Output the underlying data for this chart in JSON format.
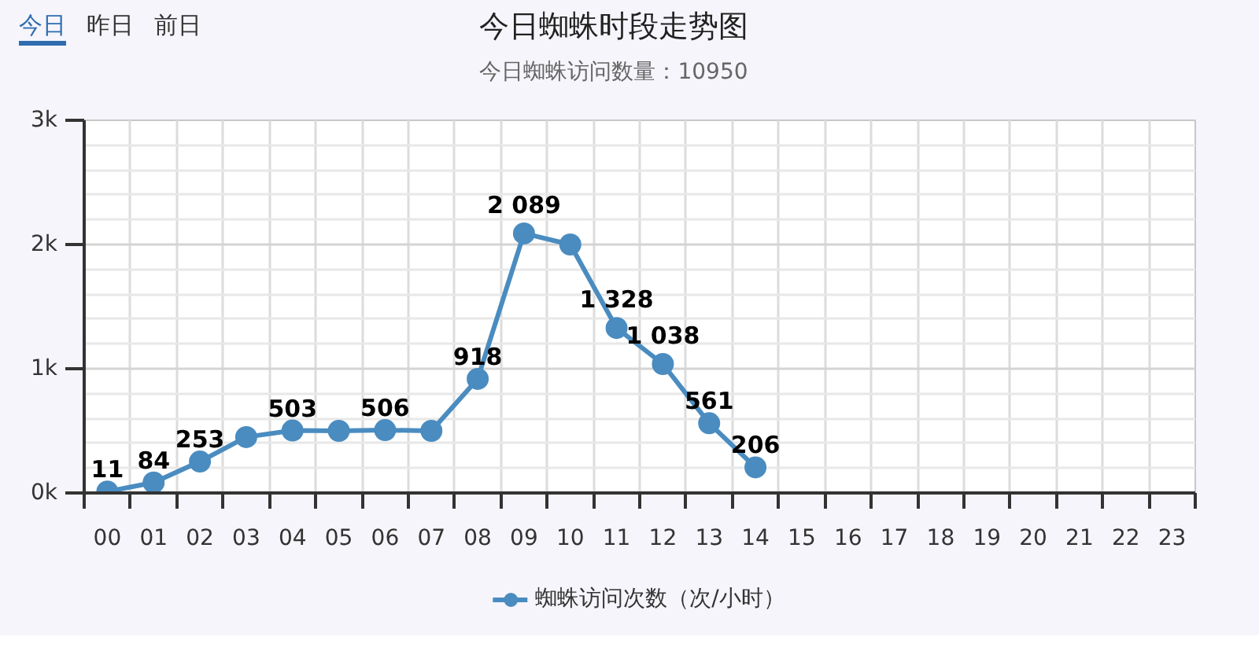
{
  "chart_data": {
    "type": "line",
    "title": "今日蜘蛛时段走势图",
    "subtitle": "今日蜘蛛访问数量：10950",
    "annotations": [
      "今日",
      "昨日",
      "前日"
    ],
    "categories": [
      "00",
      "01",
      "02",
      "03",
      "04",
      "05",
      "06",
      "07",
      "08",
      "09",
      "10",
      "11",
      "12",
      "13",
      "14",
      "15",
      "16",
      "17",
      "18",
      "19",
      "20",
      "21",
      "22",
      "23"
    ],
    "series": [
      {
        "name": "蜘蛛访问次数（次/小时）",
        "color": "#4a8cc0",
        "values": [
          11,
          84,
          253,
          450,
          503,
          500,
          506,
          500,
          918,
          2089,
          2000,
          1328,
          1038,
          561,
          206,
          null,
          null,
          null,
          null,
          null,
          null,
          null,
          null,
          null
        ],
        "value_labels": [
          "11",
          "84",
          "253",
          null,
          "503",
          null,
          "506",
          null,
          "918",
          "2 089",
          null,
          "1 328",
          "1 038",
          "561",
          "206",
          null,
          null,
          null,
          null,
          null,
          null,
          null,
          null,
          null
        ]
      }
    ],
    "ylim": [
      0,
      3000
    ],
    "yticks": [
      {
        "value": 0,
        "label": "0k"
      },
      {
        "value": 1000,
        "label": "1k"
      },
      {
        "value": 2000,
        "label": "2k"
      },
      {
        "value": 3000,
        "label": "3k"
      }
    ],
    "grid": true,
    "legend": "bottom",
    "marker": "circle",
    "line_style": "solid"
  }
}
